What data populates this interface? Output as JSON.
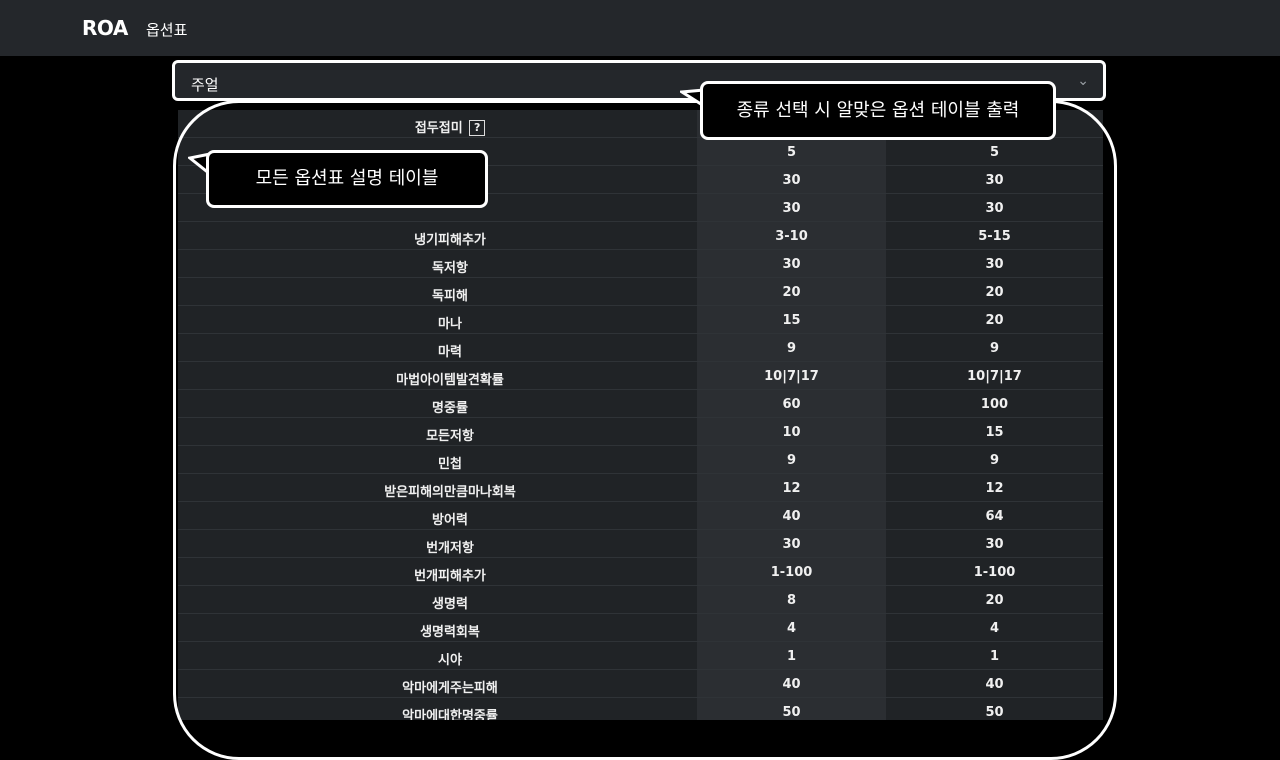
{
  "navbar": {
    "brand": "ROA",
    "link": "옵션표"
  },
  "select": {
    "value": "주얼"
  },
  "table": {
    "header_label": "접두접미",
    "help_glyph": "?",
    "rows": [
      [
        "5",
        "5"
      ],
      [
        "30",
        "30"
      ],
      [
        "30",
        "30"
      ],
      [
        "냉기피해추가",
        "3-10",
        "5-15"
      ],
      [
        "독저항",
        "30",
        "30"
      ],
      [
        "독피해",
        "20",
        "20"
      ],
      [
        "마나",
        "15",
        "20"
      ],
      [
        "마력",
        "9",
        "9"
      ],
      [
        "마법아이템발견확률",
        "10|7|17",
        "10|7|17"
      ],
      [
        "명중률",
        "60",
        "100"
      ],
      [
        "모든저항",
        "10",
        "15"
      ],
      [
        "민첩",
        "9",
        "9"
      ],
      [
        "받은피해의만큼마나회복",
        "12",
        "12"
      ],
      [
        "방어력",
        "40",
        "64"
      ],
      [
        "번개저항",
        "30",
        "30"
      ],
      [
        "번개피해추가",
        "1-100",
        "1-100"
      ],
      [
        "생명력",
        "8",
        "20"
      ],
      [
        "생명력회복",
        "4",
        "4"
      ],
      [
        "시야",
        "1",
        "1"
      ],
      [
        "악마에게주는피해",
        "40",
        "40"
      ],
      [
        "악마에대한명중률",
        "50",
        "50"
      ]
    ]
  },
  "callouts": {
    "table_select": "종류 선택 시 알맞은 옵션 테이블 출력",
    "table_desc": "모든 옵션표 설명 테이블"
  }
}
